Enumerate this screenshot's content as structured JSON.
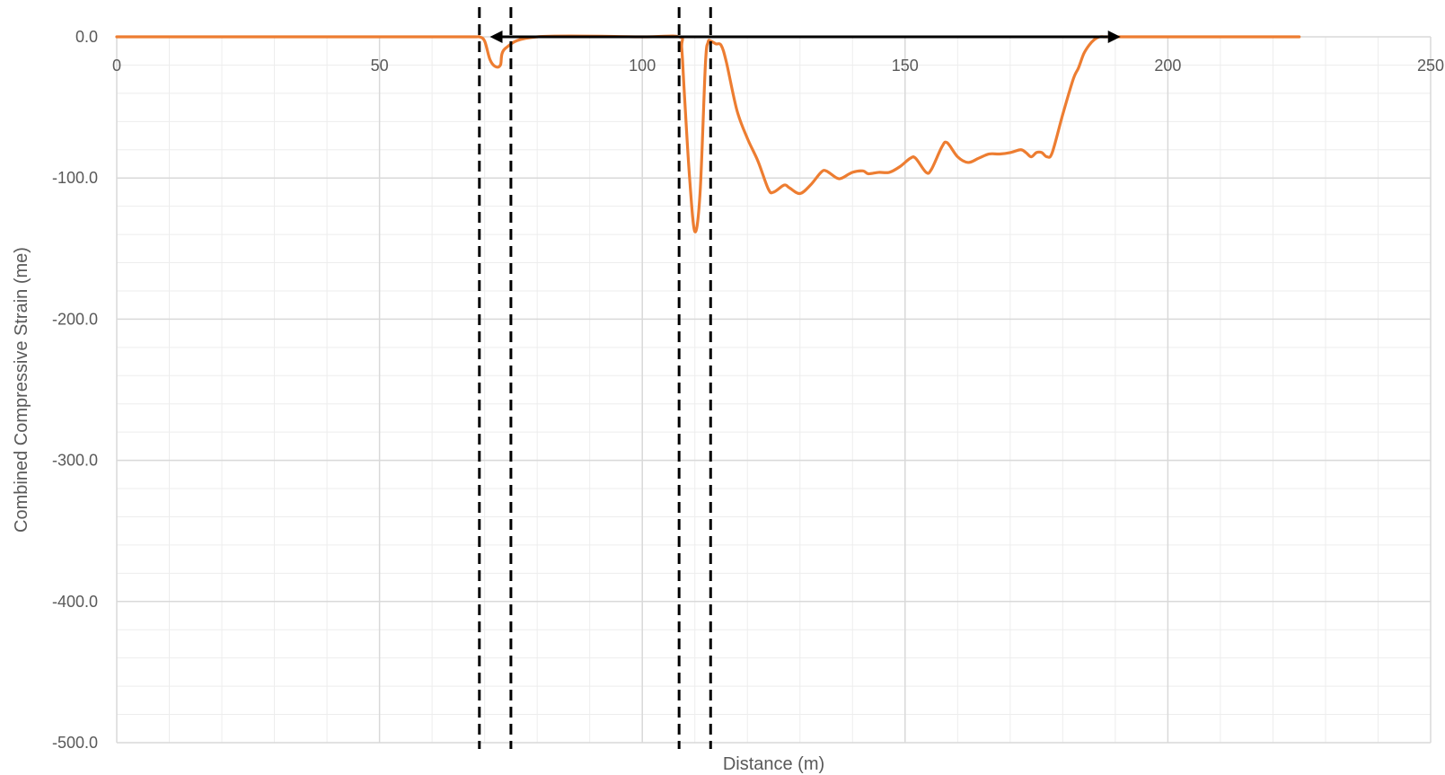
{
  "chart_data": {
    "type": "line",
    "title": "",
    "xlabel": "Distance (m)",
    "ylabel": "Combined Compressive Strain (me)",
    "xlim": [
      0,
      250
    ],
    "ylim": [
      -500,
      0
    ],
    "x_ticks": [
      0,
      50,
      100,
      150,
      200,
      250
    ],
    "x_tick_labels": [
      "0",
      "50",
      "100",
      "150",
      "200",
      "250"
    ],
    "y_ticks": [
      0,
      -100,
      -200,
      -300,
      -400,
      -500
    ],
    "y_tick_labels": [
      "0.0",
      "-100.0",
      "-200.0",
      "-300.0",
      "-400.0",
      "-500.0"
    ],
    "x_minor_step": 10,
    "y_minor_step": 20,
    "grid": true,
    "legend": "none",
    "colors": {
      "series": "#ED7D31",
      "major_grid": "#D9D9D9",
      "minor_grid": "#EDEDED",
      "annotation": "#000000"
    },
    "series": [
      {
        "x": [
          0,
          20,
          40,
          60,
          68,
          69,
          70,
          71,
          72,
          73,
          74,
          80,
          100,
          107,
          107.5,
          108,
          109,
          110,
          111,
          112,
          112.5,
          113,
          114,
          115,
          116,
          118,
          120,
          122,
          124,
          125,
          127,
          128,
          130,
          132,
          134,
          135,
          137,
          138,
          140,
          142,
          143,
          145,
          147,
          149,
          151,
          152,
          154,
          155,
          157,
          158,
          160,
          162,
          164,
          166,
          168,
          170,
          172,
          173,
          174,
          175,
          176,
          177,
          178,
          180,
          182,
          183,
          184,
          185,
          186,
          187,
          188,
          190,
          200,
          210,
          220,
          225
        ],
        "values": [
          0,
          0,
          0,
          0,
          0,
          0,
          -3,
          -16,
          -21,
          -20,
          -8,
          0,
          0,
          0,
          -8,
          -40,
          -100,
          -138,
          -110,
          -20,
          -4,
          -3,
          -5,
          -6,
          -18,
          -52,
          -72,
          -88,
          -108,
          -110,
          -105,
          -107,
          -111,
          -105,
          -96,
          -95,
          -100,
          -100,
          -96,
          -95,
          -97,
          -96,
          -96,
          -92,
          -86,
          -86,
          -96,
          -94,
          -78,
          -75,
          -85,
          -89,
          -86,
          -83,
          -83,
          -82,
          -80,
          -82,
          -85,
          -82,
          -82,
          -85,
          -82,
          -55,
          -30,
          -22,
          -12,
          -6,
          -2,
          0,
          0,
          0,
          0,
          0,
          0,
          0
        ]
      }
    ],
    "annotations": {
      "vertical_dashed_lines_x": [
        69,
        75,
        107,
        113
      ],
      "double_arrow": {
        "x_start": 71,
        "x_end": 191,
        "y": 0
      }
    }
  }
}
